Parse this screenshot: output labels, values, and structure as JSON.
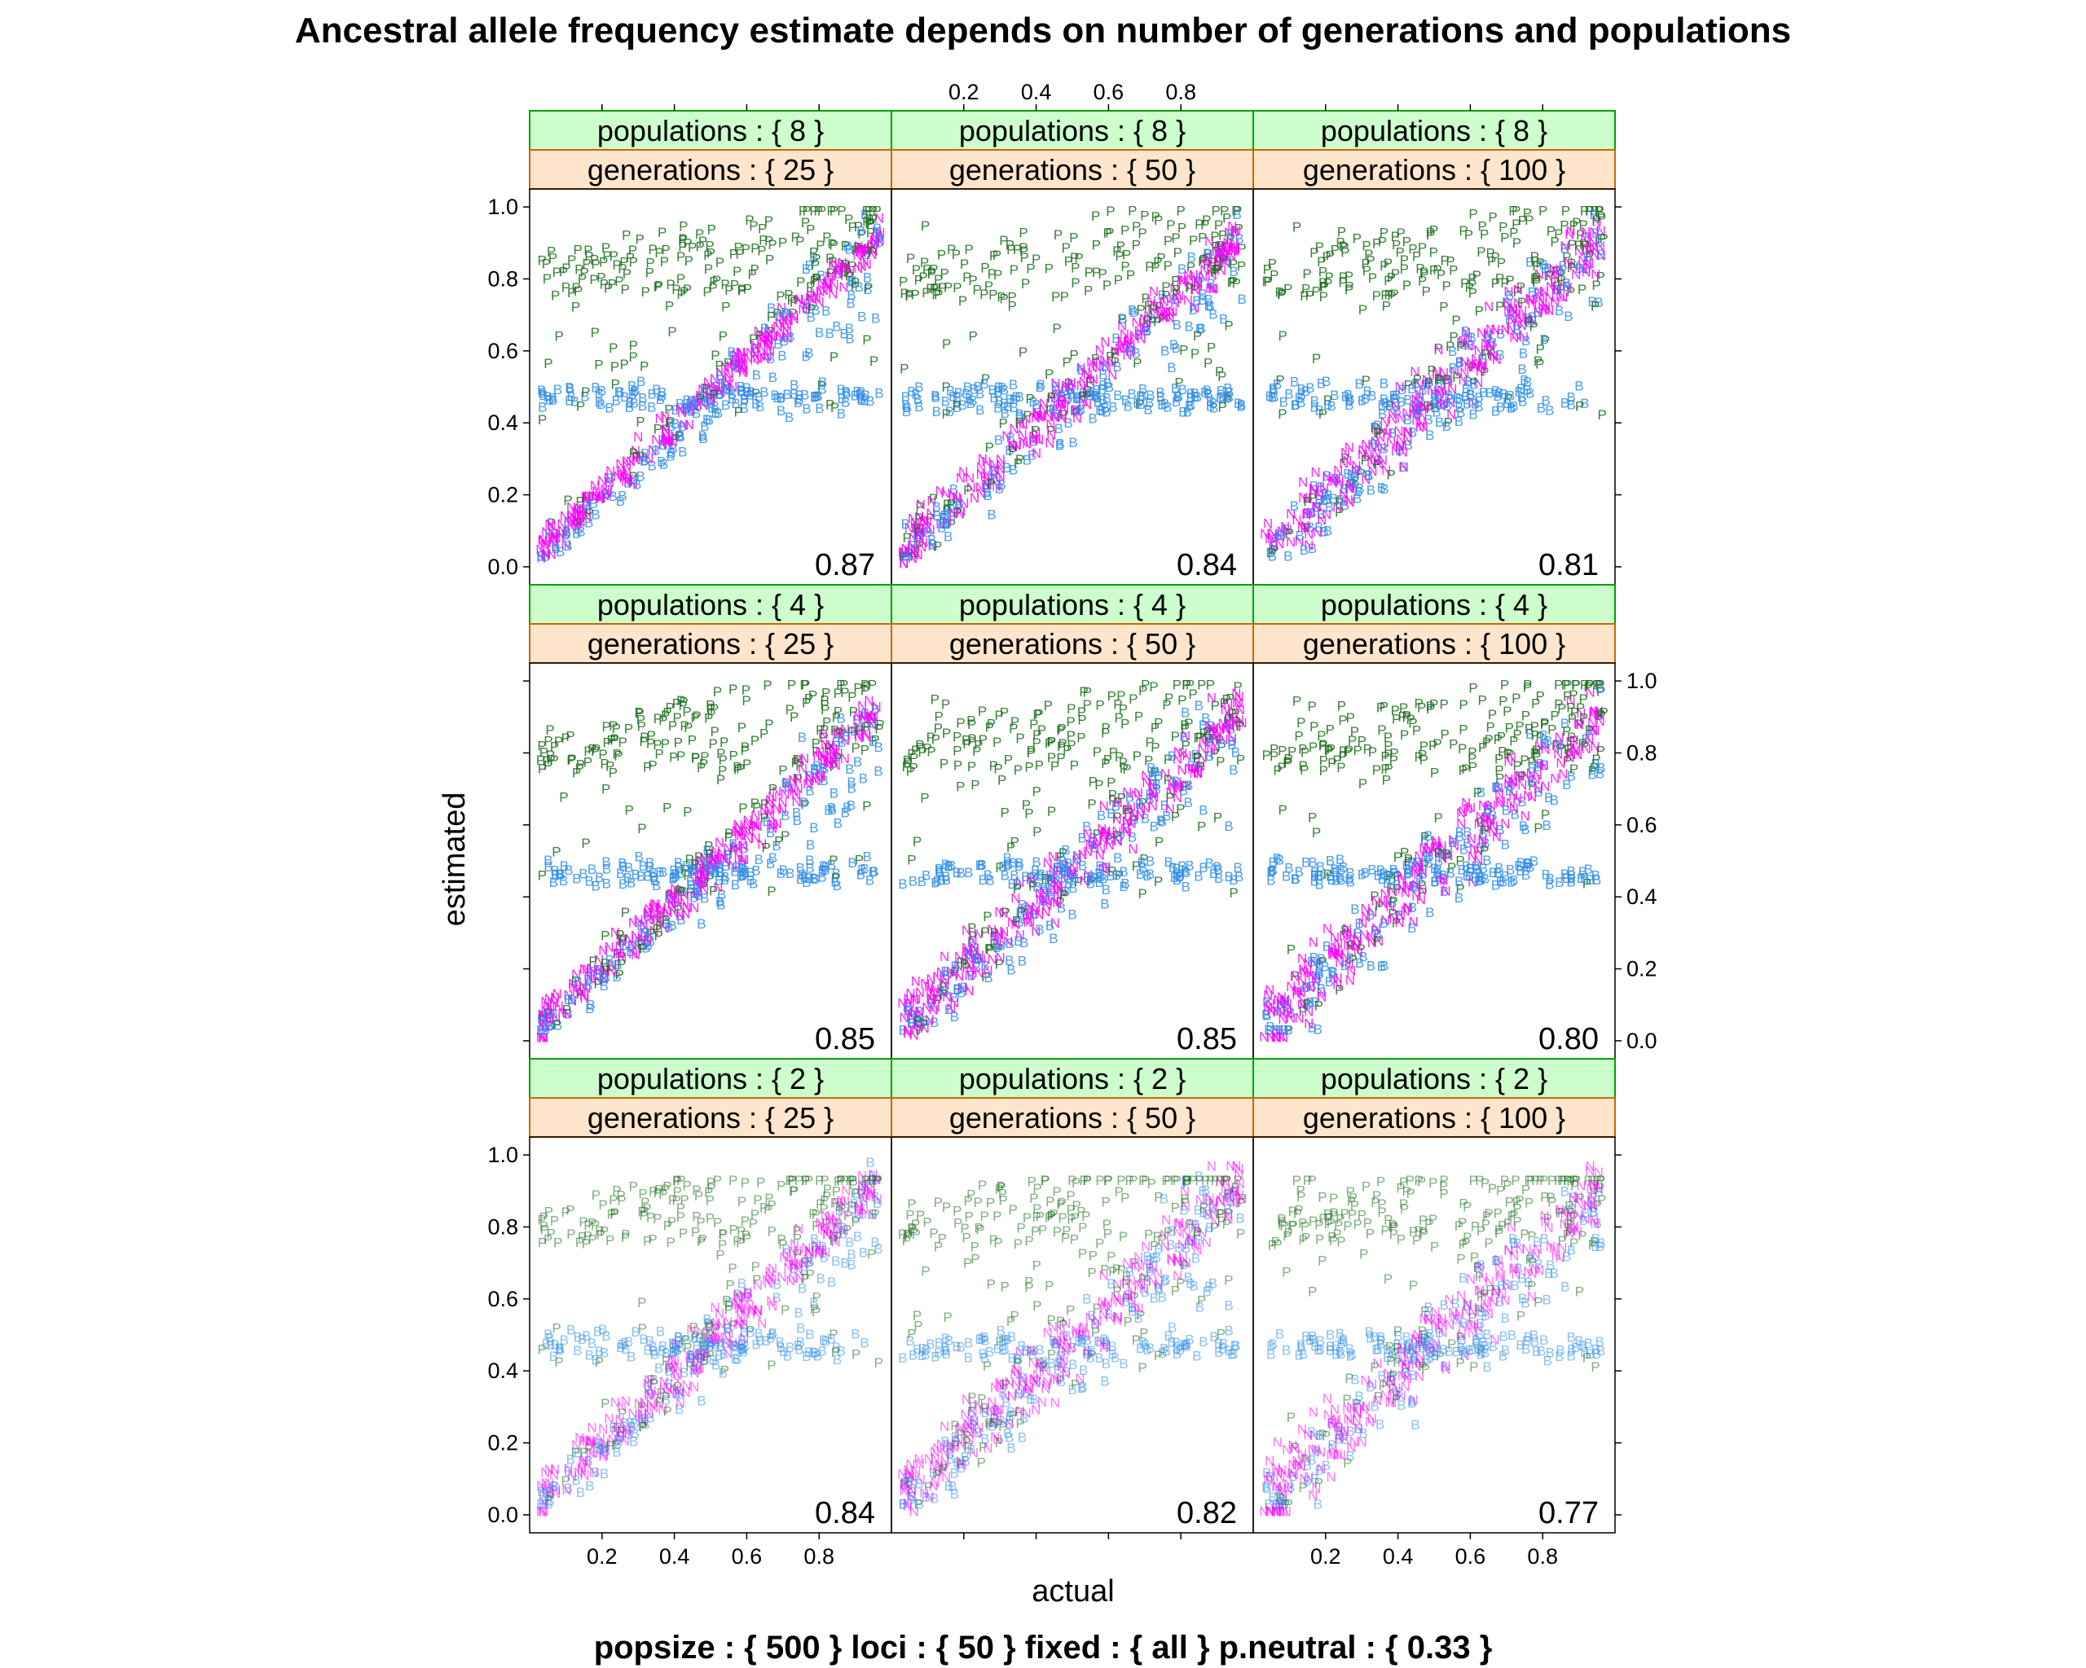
{
  "chart_data": {
    "type": "scatter",
    "title": "Ancestral allele frequency estimate depends on number of generations and populations",
    "subtitle": "popsize : { 500 } loci : { 50 } fixed : { all } p.neutral : { 0.33 }",
    "xlabel": "actual",
    "ylabel": "estimated",
    "xlim": [
      0.0,
      1.0
    ],
    "ylim": [
      -0.05,
      1.05
    ],
    "x_ticks": [
      "0.2",
      "0.4",
      "0.6",
      "0.8"
    ],
    "y_ticks": [
      "0.0",
      "0.2",
      "0.4",
      "0.6",
      "0.8",
      "1.0"
    ],
    "series": [
      {
        "symbol": "P",
        "color": "#1a6b1a"
      },
      {
        "symbol": "B",
        "color": "#2b8ce6"
      },
      {
        "symbol": "N",
        "color": "#ff00ff"
      }
    ],
    "panels": [
      {
        "populations": "populations : { 8 }",
        "generations": "generations : { 25 }",
        "correlation": "0.87",
        "row": 0,
        "col": 0
      },
      {
        "populations": "populations : { 8 }",
        "generations": "generations : { 50 }",
        "correlation": "0.84",
        "row": 0,
        "col": 1
      },
      {
        "populations": "populations : { 8 }",
        "generations": "generations : { 100 }",
        "correlation": "0.81",
        "row": 0,
        "col": 2
      },
      {
        "populations": "populations : { 4 }",
        "generations": "generations : { 25 }",
        "correlation": "0.85",
        "row": 1,
        "col": 0
      },
      {
        "populations": "populations : { 4 }",
        "generations": "generations : { 50 }",
        "correlation": "0.85",
        "row": 1,
        "col": 1
      },
      {
        "populations": "populations : { 4 }",
        "generations": "generations : { 100 }",
        "correlation": "0.80",
        "row": 1,
        "col": 2
      },
      {
        "populations": "populations : { 2 }",
        "generations": "generations : { 25 }",
        "correlation": "0.84",
        "row": 2,
        "col": 0
      },
      {
        "populations": "populations : { 2 }",
        "generations": "generations : { 50 }",
        "correlation": "0.82",
        "row": 2,
        "col": 1
      },
      {
        "populations": "populations : { 2 }",
        "generations": "generations : { 100 }",
        "correlation": "0.77",
        "row": 2,
        "col": 2
      }
    ],
    "strip_colors": {
      "populations": "#ccffcc",
      "generations": "#ffe5cc",
      "populations_border": "#00a000",
      "generations_border": "#cc6600"
    },
    "grid": false,
    "legend": "none"
  }
}
